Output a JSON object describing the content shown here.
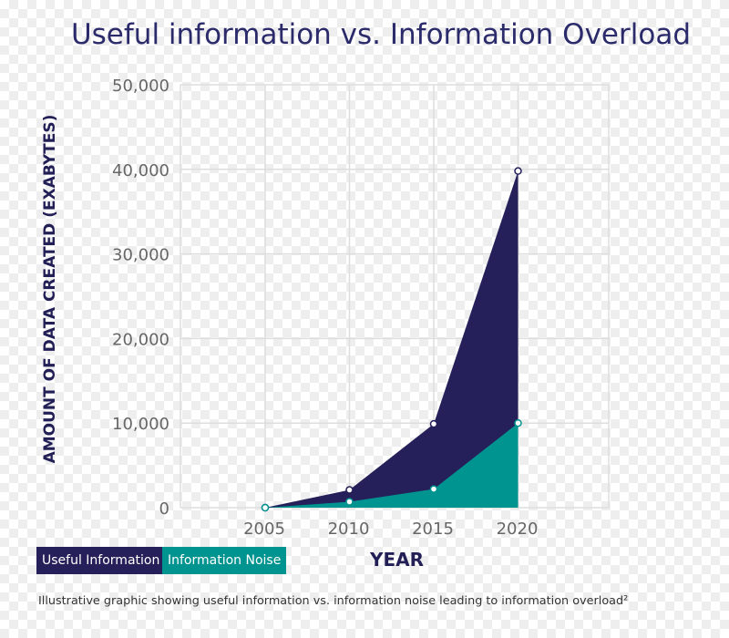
{
  "chart_data": {
    "type": "area",
    "title": "Useful information vs. Information Overload",
    "xlabel": "YEAR",
    "ylabel": "AMOUNT OF DATA CREATED (EXABYTES)",
    "x": [
      2005,
      2010,
      2015,
      2020
    ],
    "x_tick_labels": [
      "2005",
      "2010",
      "2015",
      "2020"
    ],
    "y_tick_labels": [
      "50,000",
      "40,000",
      "30,000",
      "20,000",
      "10,000",
      "0"
    ],
    "y_ticks": [
      50000,
      40000,
      30000,
      20000,
      10000,
      0
    ],
    "ylim": [
      0,
      50000
    ],
    "grid": true,
    "legend_placement": "bottom-left",
    "series": [
      {
        "name": "Useful Information",
        "values": [
          0,
          2100,
          9900,
          39800
        ],
        "color": "#251f5a"
      },
      {
        "name": "Information Noise",
        "values": [
          0,
          700,
          2200,
          10000
        ],
        "color": "#009490"
      }
    ],
    "caption": "Illustrative graphic showing useful information vs. information noise leading to information overload²"
  }
}
